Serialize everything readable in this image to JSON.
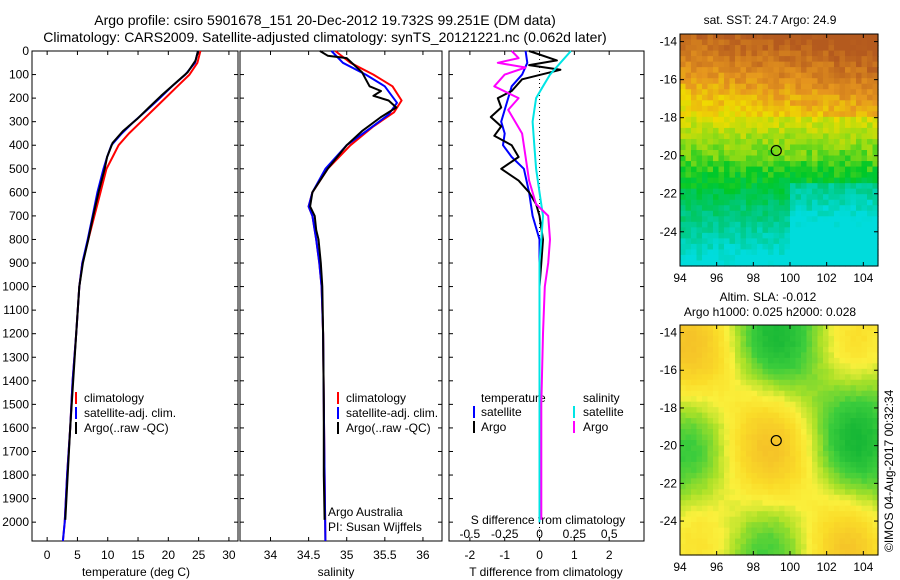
{
  "header": {
    "title_line1": "Argo profile: csiro 5901678_151 20-Dec-2012 19.732S 99.251E (DM data)",
    "title_line2": "Climatology: CARS2009. Satellite-adjusted climatology: synTS_20121221.nc (0.062d later)"
  },
  "colors": {
    "clim": "#ff0000",
    "sat": "#0000ff",
    "argo": "#000000",
    "sat_s": "#00e5e5",
    "argo_s": "#ff00ff"
  },
  "chart_data": [
    {
      "type": "line",
      "id": "temperature",
      "xlabel": "temperature (deg C)",
      "ylabel": "pressure",
      "xlim": [
        -2.5,
        31.5
      ],
      "ylim": [
        2080,
        0
      ],
      "xticks": [
        0,
        5,
        10,
        15,
        20,
        25,
        30
      ],
      "xtick_labels": [
        "0",
        "5",
        "10",
        "15",
        "20",
        "25",
        "30"
      ],
      "yticks": [
        0,
        100,
        200,
        300,
        400,
        500,
        600,
        700,
        800,
        900,
        1000,
        1100,
        1200,
        1300,
        1400,
        1500,
        1600,
        1700,
        1800,
        1900,
        2000
      ],
      "legend": [
        "climatology",
        "satellite-adj. clim.",
        "Argo(..raw -QC)"
      ],
      "series": [
        {
          "name": "climatology",
          "color": "#ff0000",
          "points": [
            [
              25.3,
              0
            ],
            [
              24.8,
              50
            ],
            [
              23.5,
              100
            ],
            [
              21.5,
              150
            ],
            [
              19.5,
              200
            ],
            [
              17.5,
              250
            ],
            [
              15.5,
              300
            ],
            [
              13.5,
              350
            ],
            [
              11.8,
              400
            ],
            [
              10.8,
              450
            ],
            [
              9.8,
              500
            ],
            [
              8.8,
              600
            ],
            [
              7.8,
              700
            ],
            [
              6.8,
              800
            ],
            [
              5.8,
              900
            ],
            [
              5.3,
              1000
            ],
            [
              4.8,
              1200
            ],
            [
              4.2,
              1400
            ],
            [
              3.8,
              1600
            ],
            [
              3.3,
              1800
            ],
            [
              2.9,
              2000
            ],
            [
              2.6,
              2080
            ]
          ]
        },
        {
          "name": "satellite-adj. clim.",
          "color": "#0000ff",
          "points": [
            [
              24.9,
              0
            ],
            [
              24.4,
              50
            ],
            [
              22.8,
              100
            ],
            [
              20.6,
              150
            ],
            [
              18.6,
              200
            ],
            [
              16.5,
              250
            ],
            [
              14.3,
              300
            ],
            [
              12.3,
              350
            ],
            [
              10.6,
              400
            ],
            [
              9.9,
              450
            ],
            [
              9.3,
              500
            ],
            [
              8.3,
              600
            ],
            [
              7.5,
              700
            ],
            [
              6.7,
              800
            ],
            [
              5.8,
              900
            ],
            [
              5.3,
              1000
            ],
            [
              4.8,
              1200
            ],
            [
              4.2,
              1400
            ],
            [
              3.8,
              1600
            ],
            [
              3.3,
              1800
            ],
            [
              2.9,
              2000
            ],
            [
              2.6,
              2080
            ]
          ]
        },
        {
          "name": "Argo(..raw -QC)",
          "color": "#000000",
          "points": [
            [
              24.9,
              0
            ],
            [
              24.5,
              40
            ],
            [
              23.2,
              90
            ],
            [
              21.0,
              140
            ],
            [
              18.8,
              190
            ],
            [
              16.8,
              240
            ],
            [
              14.8,
              290
            ],
            [
              12.5,
              340
            ],
            [
              10.8,
              390
            ],
            [
              9.9,
              450
            ],
            [
              9.5,
              500
            ],
            [
              8.5,
              600
            ],
            [
              7.6,
              700
            ],
            [
              6.8,
              800
            ],
            [
              5.9,
              900
            ],
            [
              5.3,
              1000
            ],
            [
              4.8,
              1200
            ],
            [
              4.3,
              1400
            ],
            [
              3.8,
              1600
            ],
            [
              3.4,
              1800
            ],
            [
              3.0,
              1990
            ]
          ]
        }
      ]
    },
    {
      "type": "line",
      "id": "salinity",
      "xlabel": "salinity",
      "xlim": [
        33.6,
        36.25
      ],
      "ylim": [
        2080,
        0
      ],
      "xticks": [
        34,
        34.5,
        35,
        35.5,
        36
      ],
      "xtick_labels": [
        "34",
        "34.5",
        "35",
        "35.5",
        "36"
      ],
      "legend": [
        "climatology",
        "satellite-adj. clim.",
        "Argo(..raw -QC)"
      ],
      "annotation_line1": "Argo Australia",
      "annotation_line2": "PI: Susan Wijffels",
      "series": [
        {
          "name": "climatology",
          "color": "#ff0000",
          "points": [
            [
              34.85,
              0
            ],
            [
              35.05,
              50
            ],
            [
              35.35,
              100
            ],
            [
              35.6,
              150
            ],
            [
              35.72,
              210
            ],
            [
              35.62,
              260
            ],
            [
              35.35,
              320
            ],
            [
              35.05,
              400
            ],
            [
              34.75,
              500
            ],
            [
              34.55,
              600
            ],
            [
              34.5,
              660
            ],
            [
              34.55,
              700
            ],
            [
              34.6,
              800
            ],
            [
              34.64,
              900
            ],
            [
              34.67,
              1000
            ],
            [
              34.69,
              1200
            ],
            [
              34.7,
              1500
            ],
            [
              34.71,
              1800
            ],
            [
              34.72,
              2080
            ]
          ]
        },
        {
          "name": "satellite-adj. clim.",
          "color": "#0000ff",
          "points": [
            [
              34.8,
              0
            ],
            [
              34.95,
              50
            ],
            [
              35.25,
              100
            ],
            [
              35.5,
              150
            ],
            [
              35.66,
              220
            ],
            [
              35.55,
              270
            ],
            [
              35.3,
              330
            ],
            [
              35.0,
              400
            ],
            [
              34.72,
              500
            ],
            [
              34.55,
              600
            ],
            [
              34.5,
              660
            ],
            [
              34.55,
              700
            ],
            [
              34.6,
              800
            ],
            [
              34.64,
              900
            ],
            [
              34.67,
              1000
            ],
            [
              34.69,
              1200
            ],
            [
              34.7,
              1500
            ],
            [
              34.71,
              1800
            ],
            [
              34.72,
              2080
            ]
          ]
        },
        {
          "name": "Argo(..raw -QC)",
          "color": "#000000",
          "points": [
            [
              34.65,
              0
            ],
            [
              34.75,
              20
            ],
            [
              35.0,
              30
            ],
            [
              35.1,
              60
            ],
            [
              35.2,
              90
            ],
            [
              35.25,
              120
            ],
            [
              35.3,
              150
            ],
            [
              35.45,
              170
            ],
            [
              35.35,
              190
            ],
            [
              35.55,
              210
            ],
            [
              35.65,
              240
            ],
            [
              35.45,
              280
            ],
            [
              35.2,
              340
            ],
            [
              35.0,
              400
            ],
            [
              34.75,
              500
            ],
            [
              34.55,
              600
            ],
            [
              34.52,
              660
            ],
            [
              34.58,
              700
            ],
            [
              34.6,
              760
            ],
            [
              34.63,
              800
            ],
            [
              34.66,
              900
            ],
            [
              34.68,
              1000
            ],
            [
              34.69,
              1200
            ],
            [
              34.7,
              1500
            ],
            [
              34.7,
              1800
            ],
            [
              34.71,
              1990
            ]
          ]
        }
      ]
    },
    {
      "type": "line",
      "id": "difference",
      "xlabel": "T difference from climatology",
      "top_label": "S difference from climatology",
      "xlim": [
        -2.6,
        3.0
      ],
      "ylim": [
        2080,
        0
      ],
      "xticks": [
        -2,
        -1,
        0,
        1,
        2
      ],
      "xtick_labels": [
        "-2",
        "-1",
        "0",
        "1",
        "2"
      ],
      "s_ticks": [
        -2,
        -1,
        0,
        1,
        2
      ],
      "s_tick_labels": [
        "-0.5",
        "-0.25",
        "0",
        "0.25",
        "0.5"
      ],
      "legend_titles": [
        "temperature",
        "salinity"
      ],
      "legend": [
        "satellite",
        "Argo",
        "satellite",
        "Argo"
      ],
      "series": [
        {
          "name": "T satellite",
          "color": "#0000ff",
          "points": [
            [
              -0.4,
              0
            ],
            [
              -0.35,
              50
            ],
            [
              -0.5,
              100
            ],
            [
              -0.8,
              150
            ],
            [
              -0.9,
              200
            ],
            [
              -1.0,
              250
            ],
            [
              -1.1,
              300
            ],
            [
              -1.0,
              350
            ],
            [
              -1.05,
              400
            ],
            [
              -0.8,
              450
            ],
            [
              -0.45,
              500
            ],
            [
              -0.3,
              600
            ],
            [
              -0.2,
              700
            ],
            [
              0.0,
              800
            ],
            [
              0.0,
              900
            ],
            [
              0.0,
              1000
            ],
            [
              0.0,
              1500
            ],
            [
              0.0,
              2000
            ]
          ]
        },
        {
          "name": "T Argo",
          "color": "#000000",
          "points": [
            [
              -0.3,
              0
            ],
            [
              0.5,
              40
            ],
            [
              -0.3,
              60
            ],
            [
              0.6,
              80
            ],
            [
              -0.5,
              120
            ],
            [
              -0.8,
              170
            ],
            [
              -1.2,
              200
            ],
            [
              -1.1,
              240
            ],
            [
              -1.4,
              280
            ],
            [
              -1.1,
              320
            ],
            [
              -1.3,
              360
            ],
            [
              -0.8,
              400
            ],
            [
              -0.6,
              450
            ],
            [
              -1.1,
              500
            ],
            [
              -0.6,
              550
            ],
            [
              -0.3,
              600
            ],
            [
              -0.1,
              650
            ],
            [
              0.0,
              700
            ],
            [
              0.1,
              800
            ],
            [
              0.05,
              900
            ],
            [
              0.0,
              1000
            ],
            [
              0.0,
              1500
            ],
            [
              0.0,
              1990
            ]
          ]
        },
        {
          "name": "S satellite",
          "color": "#00e5e5",
          "points": [
            [
              0.9,
              0
            ],
            [
              0.6,
              50
            ],
            [
              0.3,
              100
            ],
            [
              0.1,
              150
            ],
            [
              -0.1,
              200
            ],
            [
              -0.2,
              300
            ],
            [
              -0.15,
              400
            ],
            [
              -0.1,
              500
            ],
            [
              0.0,
              600
            ],
            [
              0.1,
              700
            ],
            [
              0.05,
              800
            ],
            [
              0.0,
              900
            ],
            [
              0.0,
              1500
            ],
            [
              0.0,
              2000
            ]
          ]
        },
        {
          "name": "S Argo",
          "color": "#ff00ff",
          "points": [
            [
              -0.8,
              0
            ],
            [
              -0.6,
              30
            ],
            [
              -1.2,
              50
            ],
            [
              -0.4,
              70
            ],
            [
              -1.0,
              100
            ],
            [
              -1.3,
              150
            ],
            [
              -0.6,
              200
            ],
            [
              -0.9,
              250
            ],
            [
              -0.7,
              300
            ],
            [
              -0.5,
              350
            ],
            [
              -0.4,
              450
            ],
            [
              -0.3,
              550
            ],
            [
              -0.1,
              650
            ],
            [
              0.25,
              700
            ],
            [
              0.3,
              800
            ],
            [
              0.25,
              900
            ],
            [
              0.15,
              1000
            ],
            [
              0.1,
              1200
            ],
            [
              0.05,
              1500
            ],
            [
              0.05,
              1800
            ],
            [
              0.05,
              1990
            ]
          ]
        }
      ]
    },
    {
      "type": "heatmap",
      "id": "sst-map",
      "title": "sat. SST: 24.7 Argo: 24.9",
      "xlim": [
        94,
        104.8
      ],
      "ylim": [
        -25.8,
        -13.6
      ],
      "xticks": [
        94,
        96,
        98,
        100,
        102,
        104
      ],
      "xtick_labels": [
        "94",
        "96",
        "98",
        "100",
        "102",
        "104"
      ],
      "yticks": [
        -14,
        -16,
        -18,
        -20,
        -22,
        -24
      ],
      "ytick_labels": [
        "-14",
        "-16",
        "-18",
        "-20",
        "-22",
        "-24"
      ],
      "marker": [
        99.25,
        -19.73
      ]
    },
    {
      "type": "heatmap",
      "id": "sla-map",
      "title_line1": "Altim. SLA: -0.012",
      "title_line2": "Argo h1000: 0.025 h2000: 0.028",
      "xlim": [
        94,
        104.8
      ],
      "ylim": [
        -25.8,
        -13.6
      ],
      "xticks": [
        94,
        96,
        98,
        100,
        102,
        104
      ],
      "xtick_labels": [
        "94",
        "96",
        "98",
        "100",
        "102",
        "104"
      ],
      "yticks": [
        -14,
        -16,
        -18,
        -20,
        -22,
        -24
      ],
      "ytick_labels": [
        "-14",
        "-16",
        "-18",
        "-20",
        "-22",
        "-24"
      ],
      "marker": [
        99.25,
        -19.73
      ]
    }
  ],
  "footer": {
    "credit": "©IMOS 04-Aug-2017 00:32:34"
  }
}
